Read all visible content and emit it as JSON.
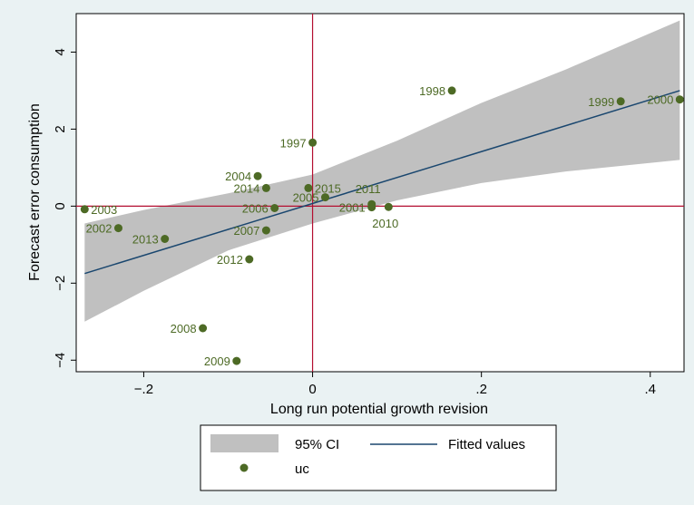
{
  "chart_data": {
    "type": "scatter",
    "xlabel": "Long run potential growth revision",
    "ylabel": "Forecast error consumption",
    "xlim": [
      -0.28,
      0.44
    ],
    "ylim": [
      -4.3,
      5.0
    ],
    "x_ticks": [
      -0.2,
      0,
      0.2,
      0.4
    ],
    "x_tick_labels": [
      "−.2",
      "0",
      ".2",
      ".4"
    ],
    "y_ticks": [
      -4,
      -2,
      0,
      2,
      4
    ],
    "y_tick_labels": [
      "−4",
      "−2",
      "0",
      "2",
      "4"
    ],
    "reference_lines": {
      "x": 0,
      "y": 0,
      "color": "#b40f31"
    },
    "grid": false,
    "points": [
      {
        "label": "1997",
        "x": 0.0,
        "y": 1.65
      },
      {
        "label": "1998",
        "x": 0.165,
        "y": 3.0
      },
      {
        "label": "1999",
        "x": 0.365,
        "y": 2.72
      },
      {
        "label": "2000",
        "x": 0.435,
        "y": 2.77
      },
      {
        "label": "2001",
        "x": 0.07,
        "y": -0.03
      },
      {
        "label": "2002",
        "x": -0.23,
        "y": -0.57
      },
      {
        "label": "2003",
        "x": -0.27,
        "y": -0.08
      },
      {
        "label": "2004",
        "x": -0.065,
        "y": 0.78
      },
      {
        "label": "2005",
        "x": 0.015,
        "y": 0.23
      },
      {
        "label": "2006",
        "x": -0.045,
        "y": -0.05
      },
      {
        "label": "2007",
        "x": -0.055,
        "y": -0.63
      },
      {
        "label": "2008",
        "x": -0.13,
        "y": -3.17
      },
      {
        "label": "2009",
        "x": -0.09,
        "y": -4.02
      },
      {
        "label": "2010",
        "x": 0.09,
        "y": -0.02
      },
      {
        "label": "2011",
        "x": 0.07,
        "y": 0.05
      },
      {
        "label": "2012",
        "x": -0.075,
        "y": -1.38
      },
      {
        "label": "2013",
        "x": -0.175,
        "y": -0.85
      },
      {
        "label": "2014",
        "x": -0.055,
        "y": 0.47
      },
      {
        "label": "2015",
        "x": -0.005,
        "y": 0.47
      }
    ],
    "fitted": {
      "x": [
        -0.27,
        0.435
      ],
      "y": [
        -1.75,
        3.0
      ]
    },
    "ci_band": {
      "x": [
        -0.27,
        -0.2,
        -0.1,
        0.0,
        0.1,
        0.2,
        0.3,
        0.435
      ],
      "lower": [
        -3.0,
        -2.2,
        -1.15,
        -0.45,
        0.15,
        0.6,
        0.9,
        1.2
      ],
      "upper": [
        -0.45,
        -0.1,
        0.33,
        0.82,
        1.7,
        2.68,
        3.55,
        4.82
      ]
    },
    "legend": {
      "placement": "bottom",
      "items": [
        {
          "key": "ci",
          "label": "95% CI"
        },
        {
          "key": "fit",
          "label": "Fitted values"
        },
        {
          "key": "points",
          "label": "uc"
        }
      ]
    },
    "colors": {
      "points": "#4d6a25",
      "point_labels": "#4d6a25",
      "fitted_line": "#1a476f",
      "ci_band": "#c0c0c0",
      "reference_lines": "#b40f31",
      "outer_background": "#eaf2f3",
      "plot_background": "#ffffff"
    }
  }
}
